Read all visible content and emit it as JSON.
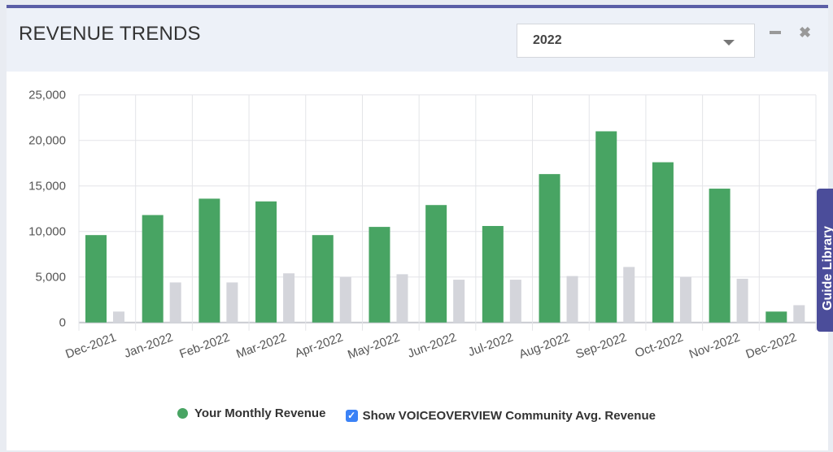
{
  "widget": {
    "title": "REVENUE TRENDS",
    "year_select": "2022"
  },
  "guide_tab": "Guide Library",
  "colors": {
    "revenue": "#48a463",
    "community": "#d4d5db",
    "accent": "#5b5ea6"
  },
  "chart_data": {
    "type": "bar",
    "categories": [
      "Dec-2021",
      "Jan-2022",
      "Feb-2022",
      "Mar-2022",
      "Apr-2022",
      "May-2022",
      "Jun-2022",
      "Jul-2022",
      "Aug-2022",
      "Sep-2022",
      "Oct-2022",
      "Nov-2022",
      "Dec-2022"
    ],
    "series": [
      {
        "name": "Your Monthly Revenue",
        "values": [
          9600,
          11800,
          13600,
          13300,
          9600,
          10500,
          12900,
          10600,
          16300,
          21000,
          17600,
          14700,
          1200
        ]
      },
      {
        "name": "Show VOICEOVERVIEW Community Avg. Revenue",
        "values": [
          1200,
          4400,
          4400,
          5400,
          5000,
          5300,
          4700,
          4700,
          5100,
          6100,
          5000,
          4800,
          1900
        ]
      }
    ],
    "yticks": [
      "0",
      "5,000",
      "10,000",
      "15,000",
      "20,000",
      "25,000"
    ],
    "ylim": [
      0,
      25000
    ],
    "grid": true,
    "legend": "bottom-center"
  }
}
